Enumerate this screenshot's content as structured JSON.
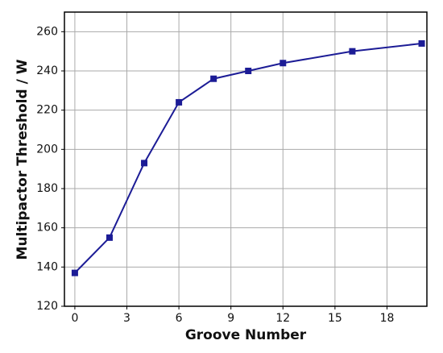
{
  "chart_data": {
    "type": "line",
    "x_label": "Groove Number",
    "y_label": "Multipactor Threshold / W",
    "x": [
      0,
      2,
      4,
      6,
      8,
      10,
      12,
      16,
      20
    ],
    "series": [
      {
        "color": "#1c1c96",
        "values": [
          137,
          155,
          193,
          224,
          236,
          240,
          244,
          250,
          254
        ]
      }
    ],
    "xlim": [
      -0.6,
      20.3
    ],
    "xticks": [
      0,
      3,
      6,
      9,
      12,
      15,
      18
    ],
    "ylim": [
      120,
      270
    ],
    "yticks": [
      120,
      140,
      160,
      180,
      200,
      220,
      240,
      260
    ],
    "grid": true,
    "marker": "square"
  }
}
